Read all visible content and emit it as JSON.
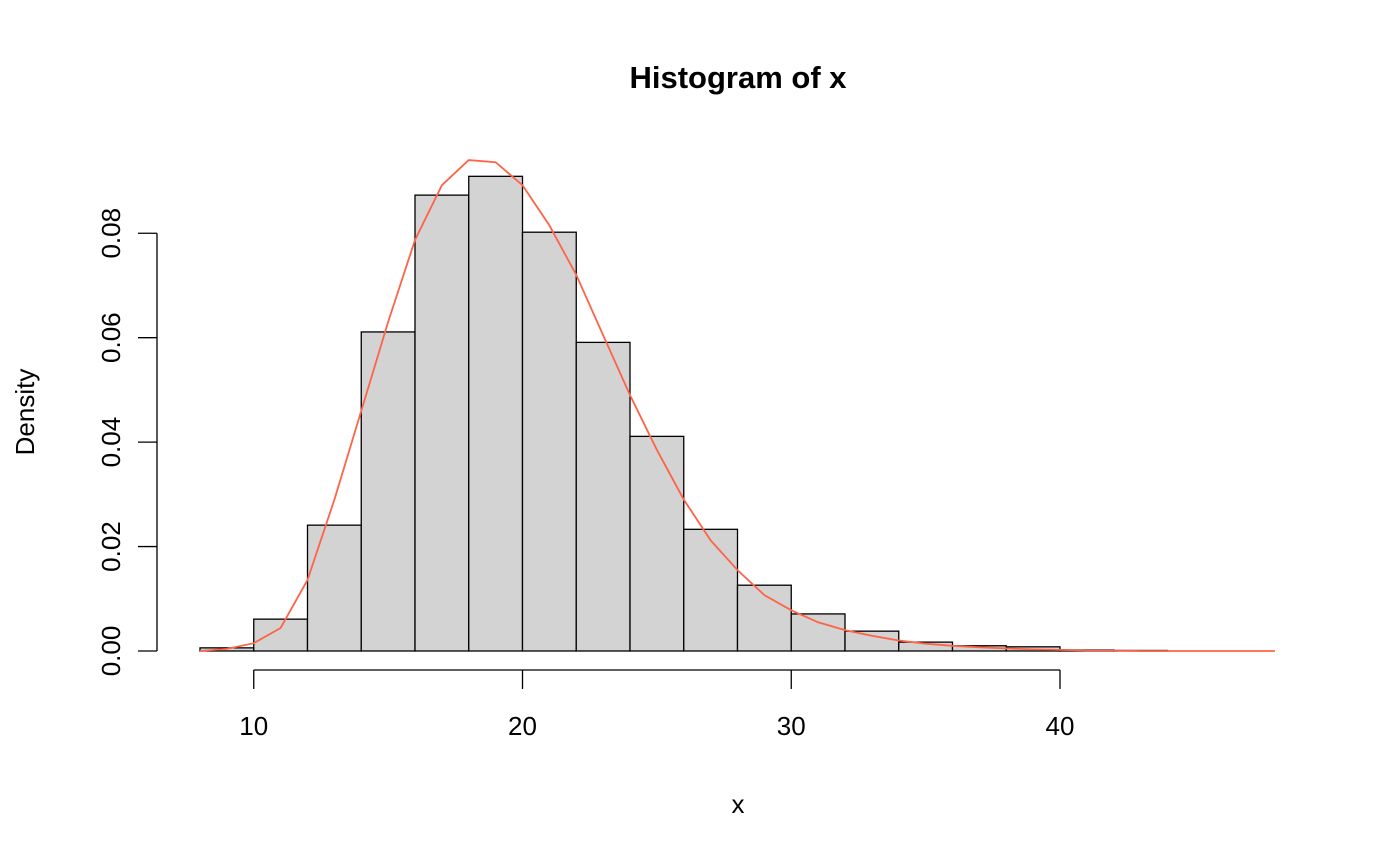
{
  "chart_data": {
    "type": "histogram",
    "title": "Histogram of x",
    "x_label": "x",
    "y_label": "Density",
    "bins": [
      8,
      10,
      12,
      14,
      16,
      18,
      20,
      22,
      24,
      26,
      28,
      30,
      32,
      34,
      36,
      38,
      40,
      42,
      44,
      46,
      48
    ],
    "values": [
      0.0006,
      0.0061,
      0.0241,
      0.0611,
      0.0873,
      0.0909,
      0.0802,
      0.0591,
      0.0411,
      0.0233,
      0.0126,
      0.0071,
      0.0038,
      0.0017,
      0.001,
      0.0008,
      0.0002,
      0.0001,
      0,
      0
    ],
    "color": "#d3d3d3",
    "density": {
      "color": "#ff6347",
      "x": [
        8,
        9,
        10,
        11,
        12,
        13,
        14,
        15,
        16,
        17,
        18,
        19,
        20,
        21,
        22,
        23,
        24,
        25,
        26,
        27,
        28,
        29,
        30,
        31,
        32,
        33,
        34,
        35,
        36,
        37,
        38,
        39,
        40,
        41,
        42,
        43,
        44,
        45,
        46,
        47,
        48
      ],
      "values": [
        0,
        0.0004,
        0.0015,
        0.0044,
        0.0136,
        0.029,
        0.046,
        0.063,
        0.0787,
        0.0892,
        0.094,
        0.0936,
        0.0892,
        0.0815,
        0.072,
        0.0605,
        0.049,
        0.0385,
        0.029,
        0.0212,
        0.0155,
        0.0107,
        0.0078,
        0.0055,
        0.004,
        0.0029,
        0.002,
        0.0014,
        0.001,
        0.0007,
        0.0005,
        0.0003,
        0.0002,
        0.0001,
        0.0001,
        0,
        0,
        0,
        0,
        0,
        0
      ]
    },
    "xlim": [
      6.4,
      49.6
    ],
    "ylim": [
      -0.00364,
      0.0946
    ],
    "xticks": [
      10,
      20,
      30,
      40
    ],
    "yticks": [
      {
        "value": 0,
        "label": "0.00"
      },
      0.02,
      0.04,
      0.06,
      0.08
    ]
  }
}
